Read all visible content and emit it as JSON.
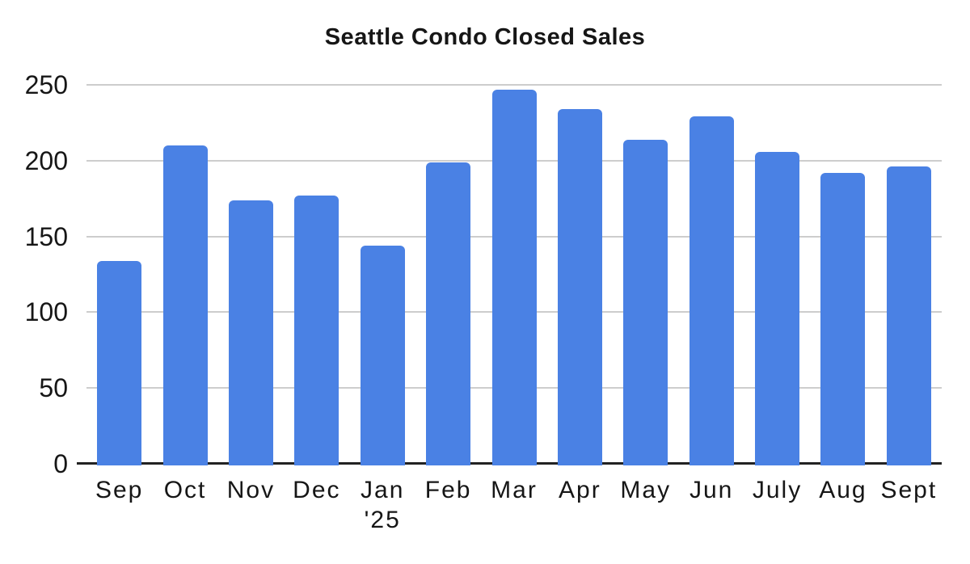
{
  "chart_data": {
    "type": "bar",
    "title": "Seattle Condo Closed Sales",
    "categories": [
      "Sep",
      "Oct",
      "Nov",
      "Dec",
      "Jan",
      "Feb",
      "Mar",
      "Apr",
      "May",
      "Jun",
      "July",
      "Aug",
      "Sept"
    ],
    "x_sublabels": [
      "",
      "",
      "",
      "",
      "'25",
      "",
      "",
      "",
      "",
      "",
      "",
      "",
      ""
    ],
    "values": [
      134,
      210,
      174,
      177,
      144,
      199,
      247,
      234,
      214,
      229,
      206,
      192,
      196
    ],
    "ylim": [
      0,
      250
    ],
    "yticks": [
      0,
      50,
      100,
      150,
      200,
      250
    ],
    "xlabel": "",
    "ylabel": "",
    "grid": "horizontal",
    "legend": "none",
    "bar_color": "#4a81e4",
    "gridline_color": "#cdcdcd",
    "axis_line_color": "#222222",
    "text_color": "#161616"
  }
}
